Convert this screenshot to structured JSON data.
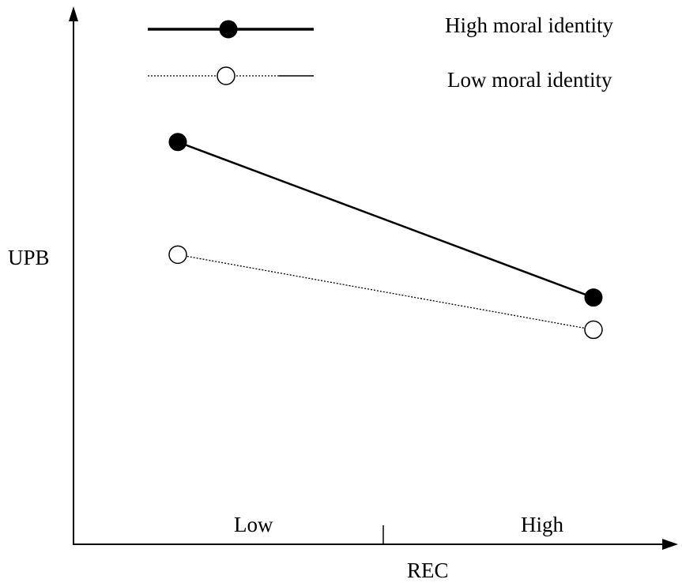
{
  "chart_data": {
    "type": "line",
    "title": "",
    "xlabel": "REC",
    "ylabel": "UPB",
    "categories": [
      "Low",
      "High"
    ],
    "ylim": [
      0,
      10
    ],
    "grid": false,
    "legend_position": "top",
    "series": [
      {
        "name": "High moral identity",
        "values": [
          7.5,
          4.6
        ],
        "marker": "filled-circle",
        "line_style": "solid",
        "color": "#000000"
      },
      {
        "name": "Low moral identity",
        "values": [
          5.4,
          4.0
        ],
        "marker": "open-circle",
        "line_style": "dotted",
        "color": "#000000"
      }
    ]
  }
}
